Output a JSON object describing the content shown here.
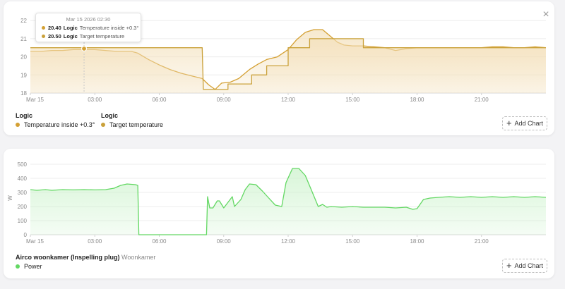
{
  "colors": {
    "logic_fill": "#f3dfb8",
    "logic_line1": "#d4a033",
    "logic_line2": "#caa13a",
    "power_fill": "#cdf3cd",
    "power_line": "#63d863"
  },
  "card1": {
    "close_icon": "×",
    "tooltip": {
      "date": "Mar 15 2026 02:30",
      "rows": [
        {
          "value": "20.40",
          "entity": "Logic",
          "name": "Temperature inside +0.3°"
        },
        {
          "value": "20.50",
          "entity": "Logic",
          "name": "Target temperature"
        }
      ]
    },
    "legend": [
      {
        "title": "Logic",
        "entry": "Temperature inside +0.3°",
        "color": "#d4a033"
      },
      {
        "title": "Logic",
        "entry": "Target temperature",
        "color": "#caa13a"
      }
    ],
    "add_chart_label": "Add Chart"
  },
  "card2": {
    "legend": {
      "title": "Airco woonkamer (Inspelling plug)",
      "subtitle": "Woonkamer",
      "entry": "Power",
      "color": "#63d863"
    },
    "add_chart_label": "Add Chart"
  },
  "chart_data": [
    {
      "type": "line",
      "title": "",
      "xlabel": "",
      "ylabel": "",
      "x_ticks": [
        "Mar 15",
        "03:00",
        "06:00",
        "09:00",
        "12:00",
        "15:00",
        "18:00",
        "21:00"
      ],
      "y_ticks": [
        18,
        19,
        20,
        21,
        22
      ],
      "xlim_hours": [
        0,
        24
      ],
      "ylim": [
        18,
        22.2
      ],
      "legend_position": "bottom-left",
      "series": [
        {
          "name": "Temperature inside +0.3°",
          "color": "#d4a033",
          "x": [
            0,
            0.5,
            1,
            1.5,
            2,
            2.5,
            3,
            3.5,
            4,
            4.7,
            5,
            5.5,
            6,
            6.5,
            7,
            7.5,
            8,
            8.3,
            8.6,
            8.9,
            9.3,
            9.7,
            10.2,
            10.6,
            11,
            11.5,
            12,
            12.4,
            12.8,
            13.2,
            13.6,
            14,
            14.3,
            14.6,
            15,
            15.5,
            16,
            16.5,
            17,
            17.5,
            18,
            18.5,
            19,
            19.5,
            20,
            20.5,
            21,
            21.5,
            22,
            22.5,
            23,
            23.5,
            24
          ],
          "y": [
            20.3,
            20.3,
            20.35,
            20.35,
            20.4,
            20.4,
            20.4,
            20.35,
            20.3,
            20.3,
            20.2,
            19.85,
            19.55,
            19.3,
            19.1,
            18.95,
            18.8,
            18.45,
            18.2,
            18.55,
            18.6,
            18.8,
            19.3,
            19.6,
            19.85,
            20.0,
            20.4,
            20.95,
            21.35,
            21.5,
            21.5,
            21.1,
            20.8,
            20.65,
            20.6,
            20.6,
            20.55,
            20.5,
            20.35,
            20.45,
            20.5,
            20.5,
            20.5,
            20.5,
            20.5,
            20.5,
            20.5,
            20.55,
            20.55,
            20.5,
            20.5,
            20.55,
            20.5
          ]
        },
        {
          "name": "Target temperature",
          "color": "#caa13a",
          "x": [
            0,
            8.0,
            8.05,
            9.2,
            9.2,
            10.3,
            10.3,
            11.0,
            11.0,
            12.0,
            12.0,
            13.0,
            13.0,
            15.5,
            15.5,
            24
          ],
          "y": [
            20.5,
            20.5,
            18.2,
            18.2,
            18.5,
            18.5,
            19.0,
            19.0,
            19.5,
            19.5,
            20.5,
            20.5,
            21.0,
            21.0,
            20.5,
            20.5
          ]
        }
      ]
    },
    {
      "type": "area",
      "title": "",
      "xlabel": "",
      "ylabel": "W",
      "x_ticks": [
        "Mar 15",
        "03:00",
        "06:00",
        "09:00",
        "12:00",
        "15:00",
        "18:00",
        "21:00"
      ],
      "y_ticks": [
        0,
        100,
        200,
        300,
        400,
        500
      ],
      "xlim_hours": [
        0,
        24
      ],
      "ylim": [
        0,
        520
      ],
      "legend_position": "bottom-left",
      "series": [
        {
          "name": "Power",
          "color": "#63d863",
          "x": [
            0,
            0.3,
            0.7,
            1,
            1.5,
            2,
            2.5,
            3,
            3.5,
            3.9,
            4.2,
            4.5,
            4.9,
            5.0,
            5.05,
            8.2,
            8.25,
            8.35,
            8.5,
            8.7,
            8.8,
            9.0,
            9.4,
            9.5,
            9.8,
            10.0,
            10.2,
            10.5,
            10.8,
            11.1,
            11.4,
            11.7,
            11.9,
            12.2,
            12.5,
            12.8,
            13.1,
            13.4,
            13.6,
            13.8,
            14.0,
            14.5,
            15,
            15.5,
            16,
            16.5,
            17,
            17.5,
            17.8,
            18.0,
            18.3,
            18.6,
            19,
            19.5,
            20,
            20.5,
            21,
            21.5,
            22,
            22.5,
            23,
            23.5,
            24
          ],
          "y": [
            320,
            315,
            320,
            315,
            320,
            318,
            320,
            318,
            320,
            330,
            350,
            360,
            355,
            350,
            0,
            0,
            270,
            190,
            190,
            240,
            240,
            190,
            270,
            200,
            250,
            320,
            360,
            355,
            310,
            260,
            210,
            200,
            370,
            470,
            470,
            420,
            310,
            200,
            215,
            195,
            200,
            195,
            200,
            195,
            195,
            195,
            190,
            195,
            180,
            185,
            250,
            260,
            265,
            270,
            265,
            270,
            265,
            270,
            265,
            270,
            265,
            270,
            265
          ]
        }
      ]
    }
  ]
}
